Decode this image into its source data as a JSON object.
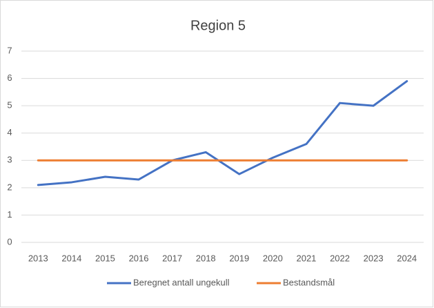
{
  "chart_data": {
    "type": "line",
    "title": "Region 5",
    "categories": [
      "2013",
      "2014",
      "2015",
      "2016",
      "2017",
      "2018",
      "2019",
      "2020",
      "2021",
      "2022",
      "2023",
      "2024"
    ],
    "series": [
      {
        "name": "Beregnet antall ungekull",
        "color": "#4472c4",
        "values": [
          2.1,
          2.2,
          2.4,
          2.3,
          3.0,
          3.3,
          2.5,
          3.1,
          3.6,
          5.1,
          5.0,
          5.9
        ]
      },
      {
        "name": "Bestandsmål",
        "color": "#ed7d31",
        "values": [
          3,
          3,
          3,
          3,
          3,
          3,
          3,
          3,
          3,
          3,
          3,
          3
        ]
      }
    ],
    "ylim": [
      0,
      7
    ],
    "yticks": [
      0,
      1,
      2,
      3,
      4,
      5,
      6,
      7
    ],
    "grid": true,
    "legend": "bottom"
  }
}
